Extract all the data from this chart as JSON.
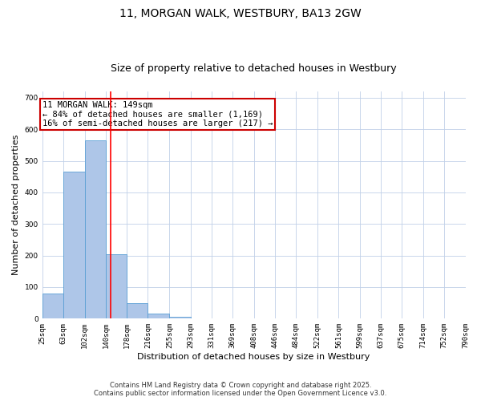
{
  "title": "11, MORGAN WALK, WESTBURY, BA13 2GW",
  "subtitle": "Size of property relative to detached houses in Westbury",
  "xlabel": "Distribution of detached houses by size in Westbury",
  "ylabel": "Number of detached properties",
  "bin_edges": [
    25,
    63,
    102,
    140,
    178,
    216,
    255,
    293,
    331,
    369,
    408,
    446,
    484,
    522,
    561,
    599,
    637,
    675,
    714,
    752,
    790
  ],
  "bar_heights": [
    80,
    465,
    565,
    205,
    50,
    15,
    5,
    2,
    1,
    1,
    0,
    0,
    0,
    0,
    0,
    0,
    0,
    0,
    0,
    0
  ],
  "bar_color": "#aec6e8",
  "bar_edge_color": "#5a9fd4",
  "red_line_x": 149,
  "annotation_text": "11 MORGAN WALK: 149sqm\n← 84% of detached houses are smaller (1,169)\n16% of semi-detached houses are larger (217) →",
  "annotation_box_color": "#ffffff",
  "annotation_box_edge": "#cc0000",
  "ylim": [
    0,
    720
  ],
  "yticks": [
    0,
    100,
    200,
    300,
    400,
    500,
    600,
    700
  ],
  "footer_line1": "Contains HM Land Registry data © Crown copyright and database right 2025.",
  "footer_line2": "Contains public sector information licensed under the Open Government Licence v3.0.",
  "bg_color": "#ffffff",
  "grid_color": "#c0d0e8",
  "title_fontsize": 10,
  "subtitle_fontsize": 9,
  "annotation_fontsize": 7.5,
  "tick_fontsize": 6.5,
  "ylabel_fontsize": 8,
  "xlabel_fontsize": 8,
  "tick_labels": [
    "25sqm",
    "63sqm",
    "102sqm",
    "140sqm",
    "178sqm",
    "216sqm",
    "255sqm",
    "293sqm",
    "331sqm",
    "369sqm",
    "408sqm",
    "446sqm",
    "484sqm",
    "522sqm",
    "561sqm",
    "599sqm",
    "637sqm",
    "675sqm",
    "714sqm",
    "752sqm",
    "790sqm"
  ]
}
